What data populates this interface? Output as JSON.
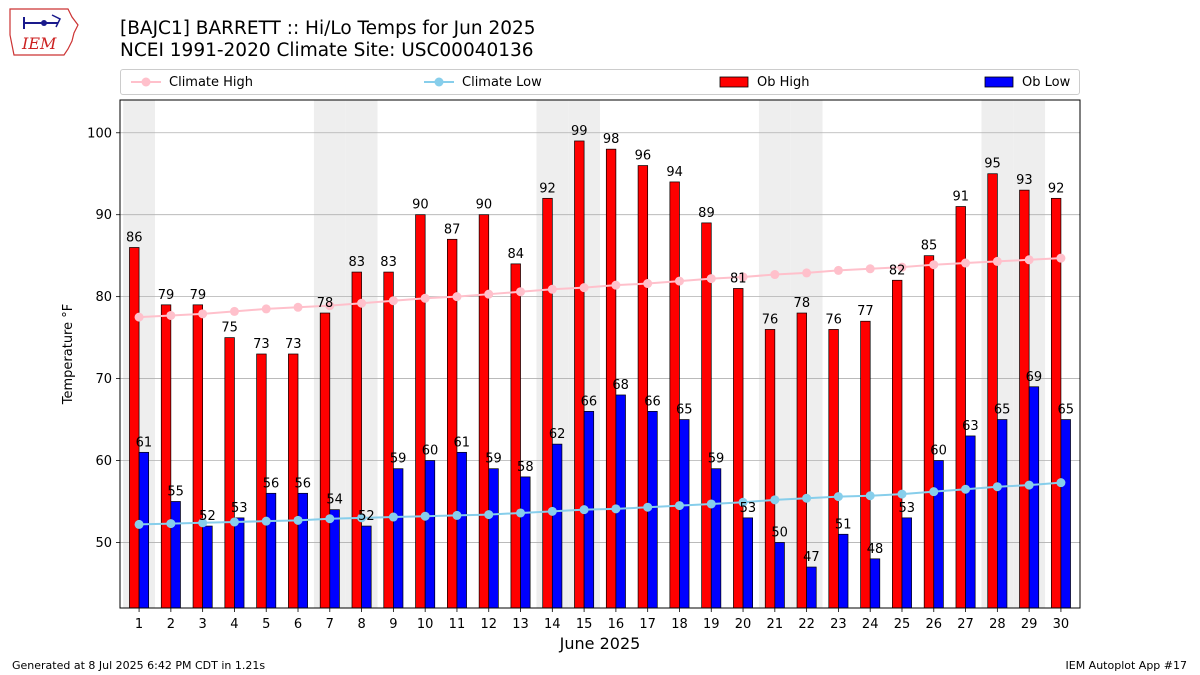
{
  "header": {
    "title_line1": "[BAJC1] BARRETT :: Hi/Lo Temps for Jun 2025",
    "title_line2": "NCEI 1991-2020 Climate Site: USC00040136",
    "logo_text": "IEM"
  },
  "footer": {
    "generated": "Generated at 8 Jul 2025 6:42 PM CDT in 1.21s",
    "app": "IEM Autoplot App #17"
  },
  "colors": {
    "ob_high": "#ff0000",
    "ob_low": "#0000ff",
    "climate_high": "#ffc0cb",
    "climate_low": "#87ceeb",
    "weekend_band": "#eeeeee",
    "grid": "#b0b0b0"
  },
  "chart_data": {
    "type": "bar",
    "title": "[BAJC1] BARRETT :: Hi/Lo Temps for Jun 2025",
    "subtitle": "NCEI 1991-2020 Climate Site: USC00040136",
    "xlabel": "June 2025",
    "ylabel": "Temperature °F",
    "ylim": [
      42,
      104
    ],
    "yticks": [
      50,
      60,
      70,
      80,
      90,
      100
    ],
    "grid": true,
    "legend_position": "top",
    "categories": [
      1,
      2,
      3,
      4,
      5,
      6,
      7,
      8,
      9,
      10,
      11,
      12,
      13,
      14,
      15,
      16,
      17,
      18,
      19,
      20,
      21,
      22,
      23,
      24,
      25,
      26,
      27,
      28,
      29,
      30
    ],
    "shaded_days": [
      1,
      7,
      8,
      14,
      15,
      21,
      22,
      28,
      29
    ],
    "series": [
      {
        "name": "Ob High",
        "kind": "bar",
        "values": [
          86,
          79,
          79,
          75,
          73,
          73,
          78,
          83,
          83,
          90,
          87,
          90,
          84,
          92,
          99,
          98,
          96,
          94,
          89,
          81,
          76,
          78,
          76,
          77,
          82,
          85,
          91,
          95,
          93,
          92
        ]
      },
      {
        "name": "Ob Low",
        "kind": "bar",
        "values": [
          61,
          55,
          52,
          53,
          56,
          56,
          54,
          52,
          59,
          60,
          61,
          59,
          58,
          62,
          66,
          68,
          66,
          65,
          59,
          53,
          50,
          47,
          51,
          48,
          53,
          60,
          63,
          65,
          69,
          65
        ]
      },
      {
        "name": "Climate High",
        "kind": "line",
        "values": [
          77.5,
          77.7,
          77.9,
          78.2,
          78.5,
          78.7,
          78.9,
          79.2,
          79.5,
          79.8,
          80.0,
          80.3,
          80.6,
          80.9,
          81.1,
          81.4,
          81.6,
          81.9,
          82.2,
          82.4,
          82.7,
          82.9,
          83.2,
          83.4,
          83.6,
          83.9,
          84.1,
          84.3,
          84.5,
          84.7
        ]
      },
      {
        "name": "Climate Low",
        "kind": "line",
        "values": [
          52.2,
          52.3,
          52.4,
          52.5,
          52.6,
          52.7,
          52.9,
          53.0,
          53.1,
          53.2,
          53.3,
          53.4,
          53.6,
          53.8,
          54.0,
          54.1,
          54.3,
          54.5,
          54.7,
          54.9,
          55.2,
          55.4,
          55.6,
          55.7,
          55.9,
          56.2,
          56.5,
          56.8,
          57.0,
          57.3
        ]
      }
    ]
  },
  "legend": {
    "items": [
      {
        "label": "Climate High"
      },
      {
        "label": "Climate Low"
      },
      {
        "label": "Ob High"
      },
      {
        "label": "Ob Low"
      }
    ]
  }
}
